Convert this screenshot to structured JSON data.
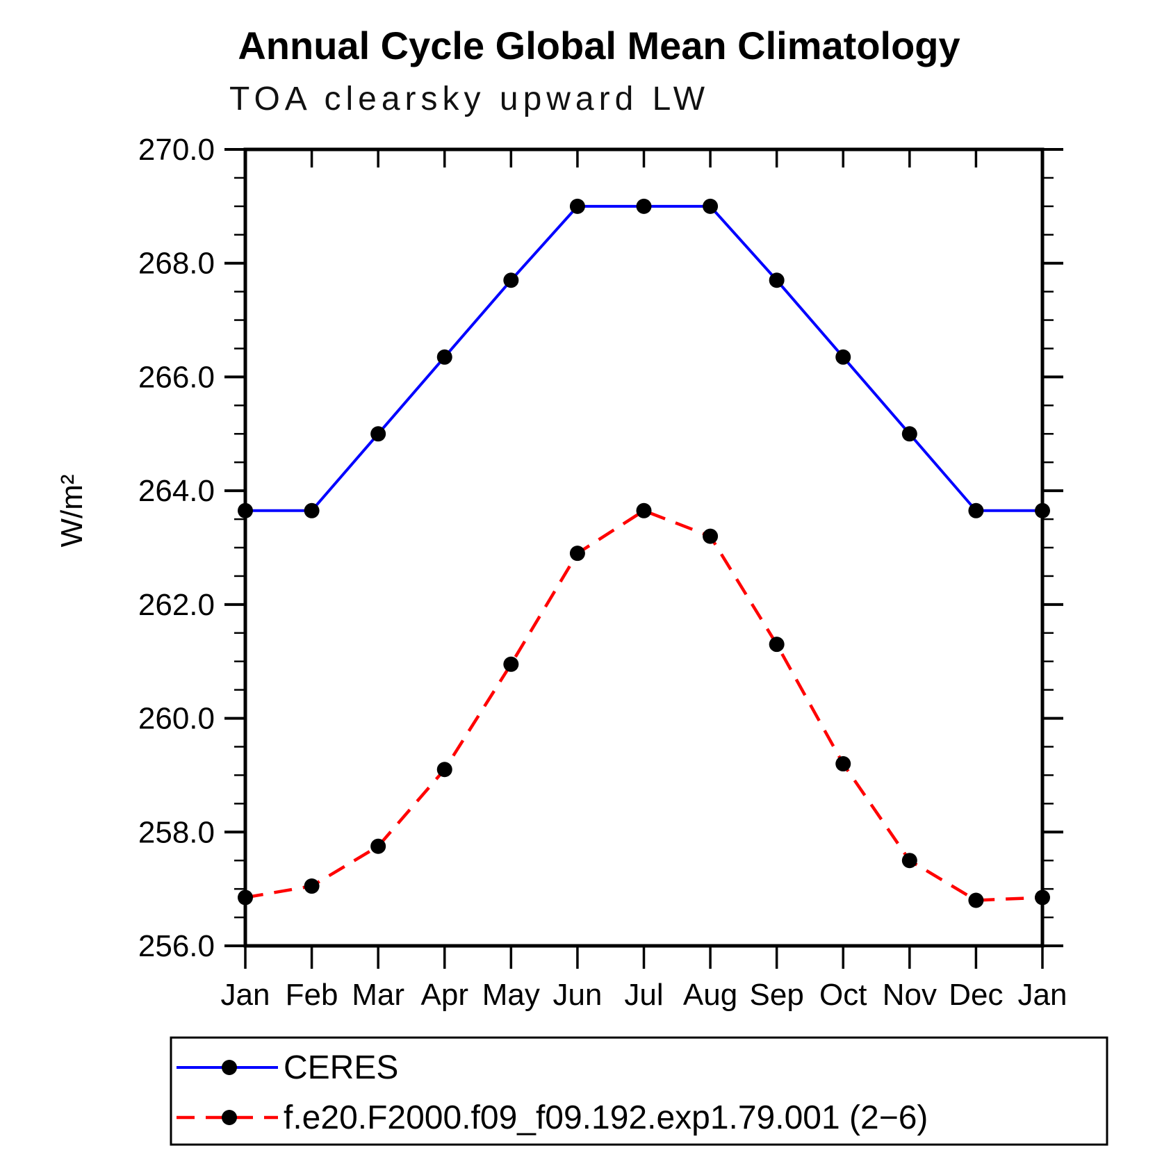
{
  "chart_data": {
    "type": "line",
    "title": "Annual Cycle Global Mean Climatology",
    "subtitle": "TOA clearsky upward LW",
    "ylabel": "W/m²",
    "xlabel": "",
    "categories": [
      "Jan",
      "Feb",
      "Mar",
      "Apr",
      "May",
      "Jun",
      "Jul",
      "Aug",
      "Sep",
      "Oct",
      "Nov",
      "Dec",
      "Jan"
    ],
    "ylim": [
      256.0,
      270.0
    ],
    "ytick_major": 2.0,
    "ytick_minor": 0.5,
    "ytick_labels": [
      "270.0",
      "268.0",
      "266.0",
      "264.0",
      "262.0",
      "260.0",
      "258.0",
      "256.0"
    ],
    "grid": false,
    "legend_position": "bottom-left",
    "marker": "filled-circle",
    "marker_color": "#000000",
    "series": [
      {
        "name": "CERES",
        "color": "#0000ff",
        "line_style": "solid",
        "values": [
          263.65,
          263.65,
          265.0,
          266.35,
          267.7,
          269.0,
          269.0,
          269.0,
          267.7,
          266.35,
          265.0,
          263.65,
          263.65
        ]
      },
      {
        "name": "f.e20.F2000.f09_f09.192.exp1.79.001 (2−6)",
        "color": "#ff0000",
        "line_style": "dashed",
        "values": [
          256.85,
          257.05,
          257.75,
          259.1,
          260.95,
          262.9,
          263.65,
          263.2,
          261.3,
          259.2,
          257.5,
          256.8,
          256.85
        ]
      }
    ]
  }
}
